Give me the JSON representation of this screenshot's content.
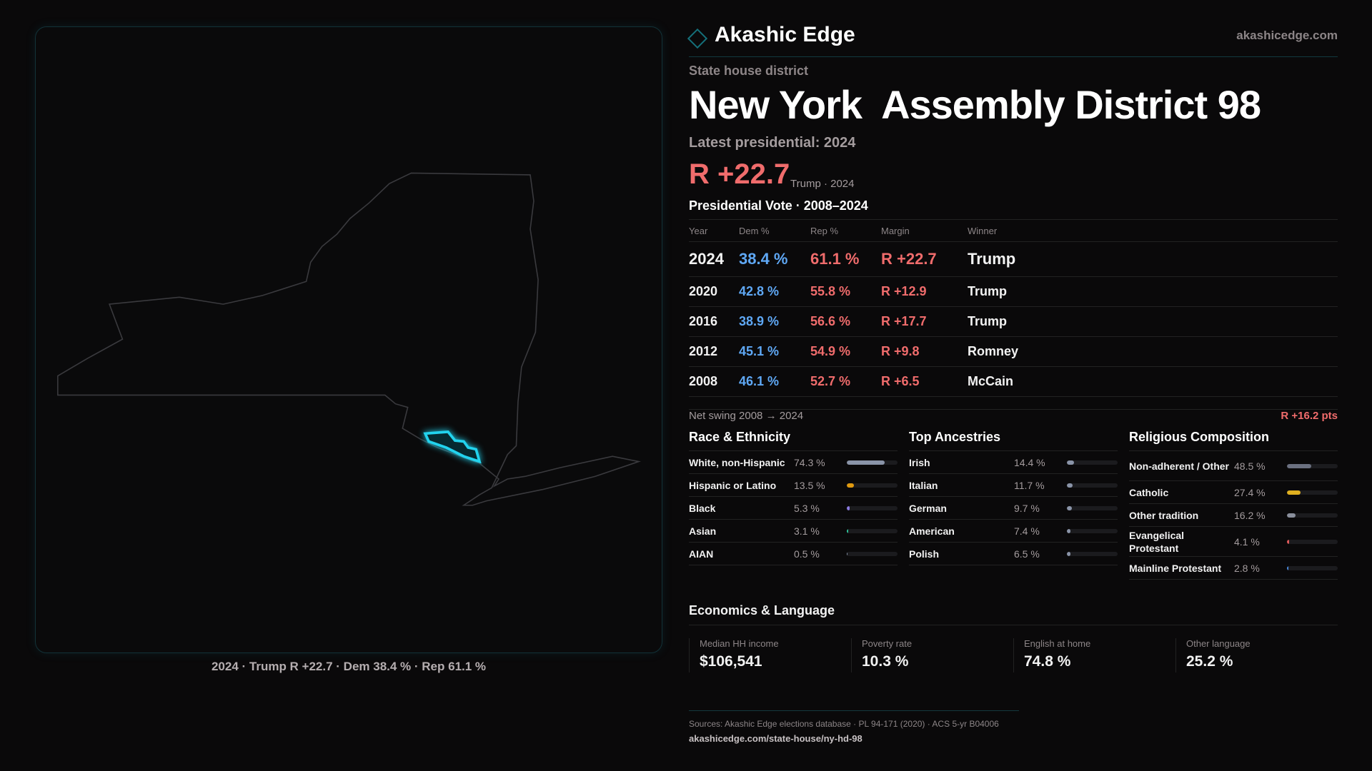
{
  "header": {
    "brand": "Akashic Edge",
    "site": "akashicedge.com"
  },
  "district": {
    "kicker": "State house district",
    "state": "New York",
    "name": "Assembly District 98",
    "latest_label": "Latest presidential: 2024",
    "margin": "R +22.7",
    "margin_sub": "Trump · 2024"
  },
  "map": {
    "caption": "2024 · Trump R +22.7 · Dem 38.4 % · Rep 61.1 %",
    "highlight_color": "#22d3ee"
  },
  "presidential": {
    "title": "Presidential Vote · 2008–2024",
    "columns": [
      "Year",
      "Dem %",
      "Rep %",
      "Margin",
      "Winner"
    ],
    "rows": [
      {
        "year": "2024",
        "dem": "38.4 %",
        "rep": "61.1 %",
        "margin": "R +22.7",
        "winner": "Trump"
      },
      {
        "year": "2020",
        "dem": "42.8 %",
        "rep": "55.8 %",
        "margin": "R +12.9",
        "winner": "Trump"
      },
      {
        "year": "2016",
        "dem": "38.9 %",
        "rep": "56.6 %",
        "margin": "R +17.7",
        "winner": "Trump"
      },
      {
        "year": "2012",
        "dem": "45.1 %",
        "rep": "54.9 %",
        "margin": "R +9.8",
        "winner": "Romney"
      },
      {
        "year": "2008",
        "dem": "46.1 %",
        "rep": "52.7 %",
        "margin": "R +6.5",
        "winner": "McCain"
      }
    ]
  },
  "swing": {
    "label": "Net swing 2008 → 2024",
    "value": "R +16.2 pts"
  },
  "race": {
    "title": "Race & Ethnicity",
    "items": [
      {
        "label": "White, non-Hispanic",
        "value": "74.3 %",
        "pct": 74.3,
        "color": "#8a94a8"
      },
      {
        "label": "Hispanic or Latino",
        "value": "13.5 %",
        "pct": 13.5,
        "color": "#e09a10"
      },
      {
        "label": "Black",
        "value": "5.3 %",
        "pct": 5.3,
        "color": "#8a7ae0"
      },
      {
        "label": "Asian",
        "value": "3.1 %",
        "pct": 3.1,
        "color": "#2ec49a"
      },
      {
        "label": "AIAN",
        "value": "0.5 %",
        "pct": 0.5,
        "color": "#8a94a8"
      }
    ]
  },
  "ancestry": {
    "title": "Top Ancestries",
    "items": [
      {
        "label": "Irish",
        "value": "14.4 %",
        "pct": 14.4,
        "color": "#8a94a8"
      },
      {
        "label": "Italian",
        "value": "11.7 %",
        "pct": 11.7,
        "color": "#8a94a8"
      },
      {
        "label": "German",
        "value": "9.7 %",
        "pct": 9.7,
        "color": "#8a94a8"
      },
      {
        "label": "American",
        "value": "7.4 %",
        "pct": 7.4,
        "color": "#8a94a8"
      },
      {
        "label": "Polish",
        "value": "6.5 %",
        "pct": 6.5,
        "color": "#8a94a8"
      }
    ]
  },
  "religion": {
    "title": "Religious Composition",
    "items": [
      {
        "label": "Non-adherent / Other",
        "value": "48.5 %",
        "pct": 48.5,
        "color": "#6b7080"
      },
      {
        "label": "Catholic",
        "value": "27.4 %",
        "pct": 27.4,
        "color": "#e0b020"
      },
      {
        "label": "Other tradition",
        "value": "16.2 %",
        "pct": 16.2,
        "color": "#8a8f9c"
      },
      {
        "label": "Evangelical Protestant",
        "value": "4.1 %",
        "pct": 4.1,
        "color": "#e05a5a"
      },
      {
        "label": "Mainline Protestant",
        "value": "2.8 %",
        "pct": 2.8,
        "color": "#4a8ae0"
      }
    ]
  },
  "economics": {
    "title": "Economics & Language",
    "cards": [
      {
        "label": "Median HH income",
        "value": "$106,541"
      },
      {
        "label": "Poverty rate",
        "value": "10.3 %"
      },
      {
        "label": "English at home",
        "value": "74.8 %"
      },
      {
        "label": "Other language",
        "value": "25.2 %"
      }
    ]
  },
  "footer": {
    "sources": "Sources: Akashic Edge elections database · PL 94-171 (2020) · ACS 5-yr B04006",
    "url": "akashicedge.com/state-house/ny-hd-98"
  }
}
